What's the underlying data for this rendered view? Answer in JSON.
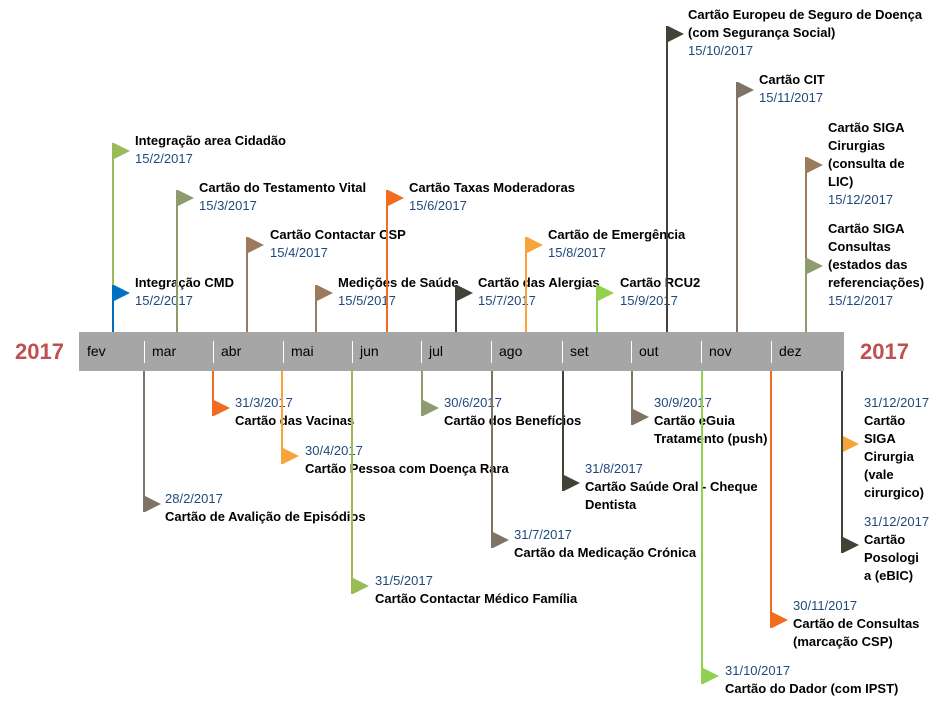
{
  "years": {
    "left": "2017",
    "right": "2017"
  },
  "months": [
    "fev",
    "mar",
    "abr",
    "mai",
    "jun",
    "jul",
    "ago",
    "set",
    "out",
    "nov",
    "dez"
  ],
  "milestones_above": [
    {
      "id": "integracao-area-cidadao",
      "title": "Integração area Cidadão",
      "date": "15/2/2017",
      "color": "#9bbb59"
    },
    {
      "id": "integracao-cmd",
      "title": "Integração CMD",
      "date": "15/2/2017",
      "color": "#0070c0"
    },
    {
      "id": "cartao-testamento-vital",
      "title": "Cartão do Testamento Vital",
      "date": "15/3/2017",
      "color": "#8e9b6c"
    },
    {
      "id": "cartao-contactar-csp",
      "title": "Cartão Contactar CSP",
      "date": "15/4/2017",
      "color": "#9c7a5e"
    },
    {
      "id": "medicoes-de-saude",
      "title": "Medições de Saúde",
      "date": "15/5/2017",
      "color": "#9c7a5e"
    },
    {
      "id": "cartao-taxas-moderadoras",
      "title": "Cartão Taxas Moderadoras",
      "date": "15/6/2017",
      "color": "#f26b1f"
    },
    {
      "id": "cartao-das-alergias",
      "title": "Cartão das Alergias",
      "date": "15/7/2017",
      "color": "#3f4436"
    },
    {
      "id": "cartao-de-emergencia",
      "title": "Cartão de Emergência",
      "date": "15/8/2017",
      "color": "#f8a33b"
    },
    {
      "id": "cartao-rcu2",
      "title": "Cartão RCU2",
      "date": "15/9/2017",
      "color": "#92d050"
    },
    {
      "id": "cartao-europeu",
      "title_lines": [
        "Cartão Europeu de Seguro de Doença",
        "(com Segurança Social)"
      ],
      "date": "15/10/2017",
      "color": "#3f4436"
    },
    {
      "id": "cartao-cit",
      "title": "Cartão CIT",
      "date": "15/11/2017",
      "color": "#7f7365"
    },
    {
      "id": "cartao-siga-cirurgias",
      "title_lines": [
        "Cartão SIGA",
        "Cirurgias",
        "(consulta de",
        "LIC)"
      ],
      "date": "15/12/2017",
      "color": "#9c7a5e"
    },
    {
      "id": "cartao-siga-consultas",
      "title_lines": [
        "Cartão SIGA",
        "Consultas",
        "(estados das",
        "referenciações)"
      ],
      "date": "15/12/2017",
      "color": "#8e9b6c"
    }
  ],
  "milestones_below": [
    {
      "id": "cartao-avaliacao-episodios",
      "title": "Cartão de Avalição de Episódios",
      "date": "28/2/2017",
      "color": "#7f7365"
    },
    {
      "id": "cartao-das-vacinas",
      "title": "Cartão das Vacinas",
      "date": "31/3/2017",
      "color": "#f26b1f"
    },
    {
      "id": "cartao-doenca-rara",
      "title": "Cartão Pessoa com Doença Rara",
      "date": "30/4/2017",
      "color": "#f8a33b"
    },
    {
      "id": "cartao-contactar-medico-familia",
      "title": "Cartão Contactar Médico Família",
      "date": "31/5/2017",
      "color": "#9bbb59"
    },
    {
      "id": "cartao-dos-beneficios",
      "title": "Cartão dos Benefícios",
      "date": "30/6/2017",
      "color": "#8e9b6c"
    },
    {
      "id": "cartao-medicacao-cronica",
      "title": "Cartão da Medicação Crónica",
      "date": "31/7/2017",
      "color": "#7f7365"
    },
    {
      "id": "cartao-saude-oral",
      "title_lines": [
        "Cartão Saúde Oral - Cheque",
        "Dentista"
      ],
      "date": "31/8/2017",
      "color": "#3f4436"
    },
    {
      "id": "cartao-eguia",
      "title_lines": [
        "Cartão eGuia",
        "Tratamento (push)"
      ],
      "date": "30/9/2017",
      "color": "#7f7365"
    },
    {
      "id": "cartao-do-dador",
      "title": "Cartão do Dador (com IPST)",
      "date": "31/10/2017",
      "color": "#92d050"
    },
    {
      "id": "cartao-de-consultas",
      "title_lines": [
        "Cartão de Consultas",
        "(marcação CSP)"
      ],
      "date": "30/11/2017",
      "color": "#f26b1f"
    },
    {
      "id": "cartao-siga-cirurgia-vale",
      "title_lines": [
        "Cartão",
        "SIGA",
        "Cirurgia",
        "(vale",
        "cirurgico)"
      ],
      "date": "31/12/2017",
      "color": "#f8a33b"
    },
    {
      "id": "cartao-posologia",
      "title_lines": [
        "Cartão",
        "Posologi",
        "a (eBIC)"
      ],
      "date": "31/12/2017",
      "color": "#3f4436"
    }
  ]
}
